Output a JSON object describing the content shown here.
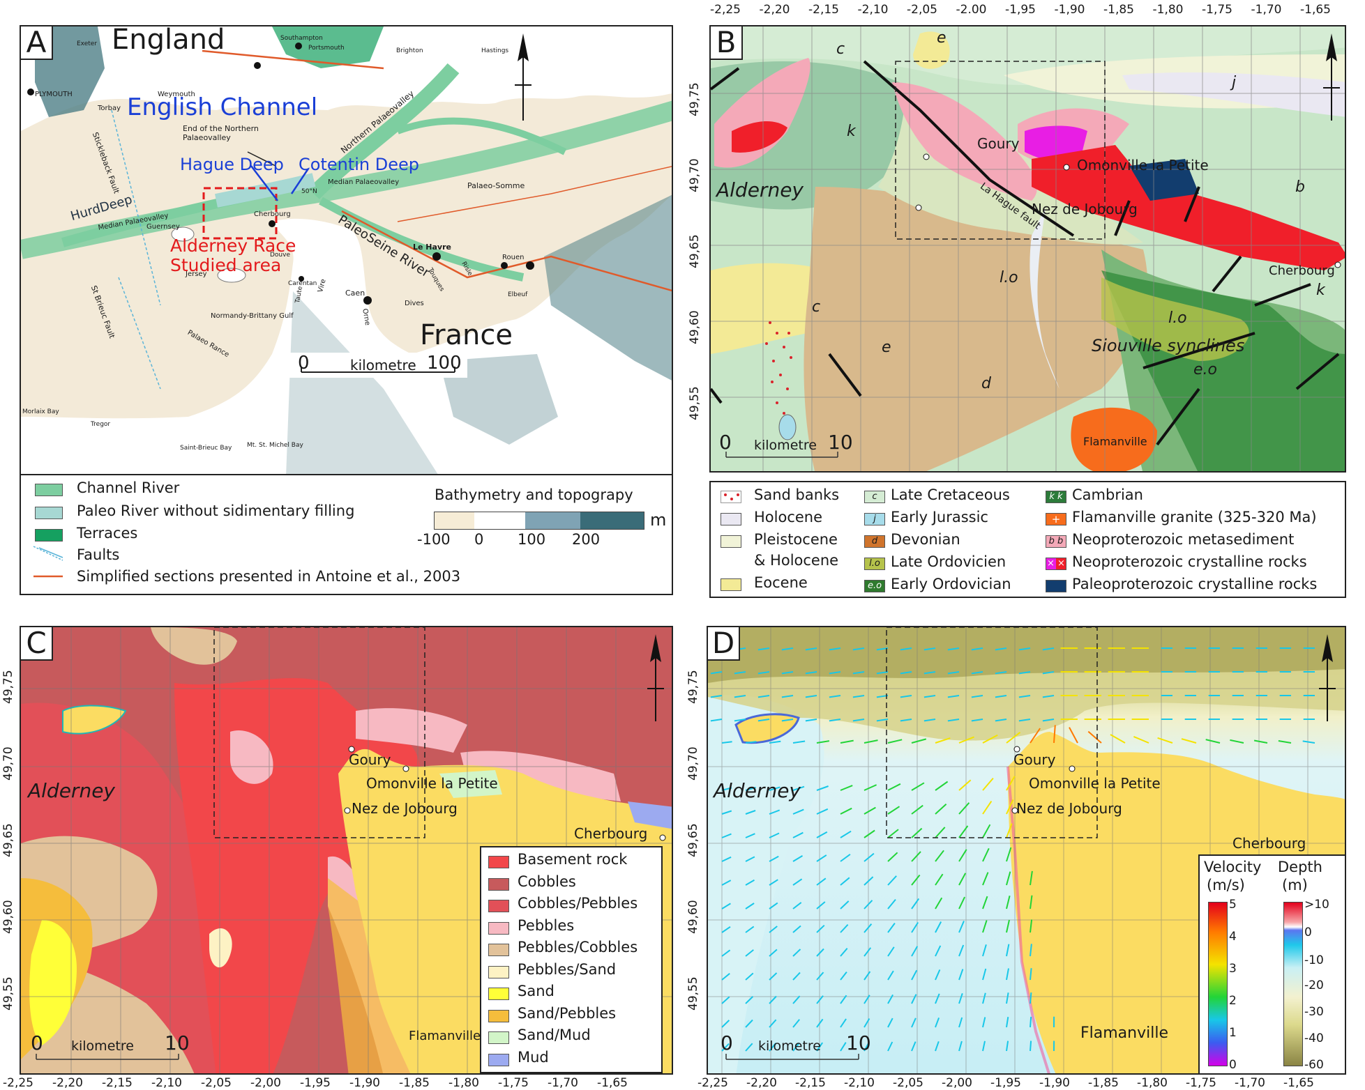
{
  "panels": {
    "A": {
      "label": "A",
      "places": {
        "england": "England",
        "france": "France",
        "channel": "English Channel",
        "hague": "Hague Deep",
        "cotentin": "Cotentin Deep",
        "race1": "Alderney Race",
        "race2": "Studied area",
        "hurd": "HurdDeep",
        "paleoseine": "PaleoSeine River",
        "endnorth1": "End of the Northern",
        "endnorth2": "Palaeovalley",
        "northern": "Northern Palaeovalley",
        "median1": "Median Palaeovalley",
        "median2": "Median Palaeovalley",
        "palaeosomme": "Palaeo-Somme",
        "stick": "Stickleback Fault",
        "stbrieucf": "St Brieuc Fault",
        "normandy": "Normandy-Brittany Gulf",
        "palaeorance": "Palaeo Rance",
        "plymouth": "PLYMOUTH",
        "torbay": "Torbay",
        "weymouth": "Weymouth",
        "exeter": "Exeter",
        "southampton": "Southampton",
        "portsmouth": "Portsmouth",
        "brighton": "Brighton",
        "hastings": "Hastings",
        "guernsey": "Guernsey",
        "jersey": "Jersey",
        "cherbourg": "Cherbourg",
        "lehavre": "Le Havre",
        "caen": "Caen",
        "rouen": "Rouen",
        "elbeuf": "Elbeuf",
        "dives": "Dives",
        "orne": "Orne",
        "vire": "Vire",
        "taute": "Taute",
        "douve": "Douve",
        "risle": "Risle",
        "touques": "Touques",
        "carentan": "Carentan",
        "morlaix": "Morlaix Bay",
        "tregor": "Tregor",
        "stbrieucb": "Saint-Brieuc Bay",
        "mtstmichel": "Mt. St. Michel Bay",
        "fifty": "50°N"
      },
      "scale": {
        "zero": "0",
        "unit": "kilometre",
        "max": "100"
      },
      "legend": {
        "items": [
          "Channel River",
          "Paleo River without sidimentary filling",
          "Terraces",
          "Faults",
          "Simplified sections presented in Antoine et al., 2003"
        ],
        "bathy_title": "Bathymetry and topograpy",
        "bathy_unit": "m",
        "bathy_ticks": [
          "-100",
          "0",
          "100",
          "200"
        ]
      }
    },
    "B": {
      "label": "B",
      "places": {
        "alderney": "Alderney",
        "goury": "Goury",
        "omonville": "Omonville la Petite",
        "nez": "Nez de Jobourg",
        "cherbourg": "Cherbourg",
        "lahague": "La Hague fault",
        "siouville": "Siouville synclines",
        "flamanville": "Flamanville"
      },
      "units": [
        "c",
        "e",
        "k",
        "j",
        "b",
        "l.o",
        "c",
        "e",
        "d",
        "l.o",
        "e.o",
        "k"
      ],
      "scale": {
        "zero": "0",
        "unit": "kilometre",
        "max": "10"
      },
      "top_ticks": [
        "-2,25",
        "-2,20",
        "-2,15",
        "-2,10",
        "-2,05",
        "-2.00",
        "-1,95",
        "-1,90",
        "-1,85",
        "-1,80",
        "-1,75",
        "-1,70",
        "-1,65"
      ],
      "left_ticks": [
        "49,75",
        "49,70",
        "49,65",
        "49,60",
        "49,55"
      ],
      "legend": {
        "col1": [
          "Sand banks",
          "Holocene",
          "Pleistocene",
          "& Holocene",
          "Eocene"
        ],
        "col2": [
          "Late Cretaceous",
          "Early Jurassic",
          "Devonian",
          "Late Ordovicien",
          "Early Ordovician"
        ],
        "col2_keys": [
          "c",
          "j",
          "d",
          "l.o",
          "e.o"
        ],
        "col3": [
          "Cambrian",
          "Flamanville granite (325-320 Ma)",
          "Neoproterozoic metasediment",
          "Neoproterozoic crystalline rocks",
          "Paleoproterozoic crystalline rocks"
        ],
        "col3_keys": [
          "k k",
          "+",
          "b b",
          "× ×",
          ""
        ]
      }
    },
    "C": {
      "label": "C",
      "places": {
        "alderney": "Alderney",
        "goury": "Goury",
        "omonville": "Omonville la Petite",
        "nez": "Nez de Jobourg",
        "cherbourg": "Cherbourg",
        "flamanville": "Flamanville"
      },
      "scale": {
        "zero": "0",
        "unit": "kilometre",
        "max": "10"
      },
      "left_ticks": [
        "49,75",
        "49,70",
        "49,65",
        "49,60",
        "49,55"
      ],
      "bottom_ticks": [
        "-2,25",
        "-2,20",
        "-2,15",
        "-2,10",
        "-2,05",
        "-2,00",
        "-1,95",
        "-1,90",
        "-1,85",
        "-1,80",
        "-1,75",
        "-1,70",
        "-1,65"
      ],
      "legend": [
        "Basement rock",
        "Cobbles",
        "Cobbles/Pebbles",
        "Pebbles",
        "Pebbles/Cobbles",
        "Pebbles/Sand",
        "Sand",
        "Sand/Pebbles",
        "Sand/Mud",
        "Mud"
      ]
    },
    "D": {
      "label": "D",
      "places": {
        "alderney": "Alderney",
        "goury": "Goury",
        "omonville": "Omonville la Petite",
        "nez": "Nez de Jobourg",
        "cherbourg": "Cherbourg",
        "flamanville": "Flamanville"
      },
      "scale": {
        "zero": "0",
        "unit": "kilometre",
        "max": "10"
      },
      "left_ticks": [
        "49,75",
        "49,70",
        "49,65",
        "49,60",
        "49,55"
      ],
      "bottom_ticks": [
        "-2,25",
        "-2,20",
        "-2,15",
        "-2,10",
        "-2,05",
        "-2,00",
        "-1,95",
        "-1,90",
        "-1,85",
        "-1,80",
        "-1,75",
        "-1,70",
        "-1,65"
      ],
      "velocity": {
        "title1": "Velocity",
        "title2": "(m/s)",
        "ticks": [
          "5",
          "4",
          "3",
          "2",
          "1",
          "0"
        ]
      },
      "depth": {
        "title1": "Depth",
        "title2": "(m)",
        "ticks": [
          ">10",
          "0",
          "-10",
          "-20",
          "-30",
          "-40",
          "-60"
        ]
      }
    }
  },
  "colors": {
    "sea_a": "#f3ead8",
    "land_a": "#ffffff",
    "channel_river": "#7dcea0",
    "paleo_river": "#a7d8d3",
    "terraces": "#15a060",
    "fault_blue": "#5ab4d8",
    "section_red": "#e05a2a",
    "basement": "#f2474a",
    "cobbles": "#c75a5c",
    "cobbles_pebbles": "#e25058",
    "pebbles": "#f7b9c2",
    "pebbles_cobbles": "#e2c29a",
    "pebbles_sand": "#fdf2c4",
    "sand": "#ffff38",
    "sand_pebbles": "#f5bd3c",
    "sand_mud": "#d2f5c8",
    "mud": "#9caaf0",
    "land_yellow": "#fbdc62"
  }
}
